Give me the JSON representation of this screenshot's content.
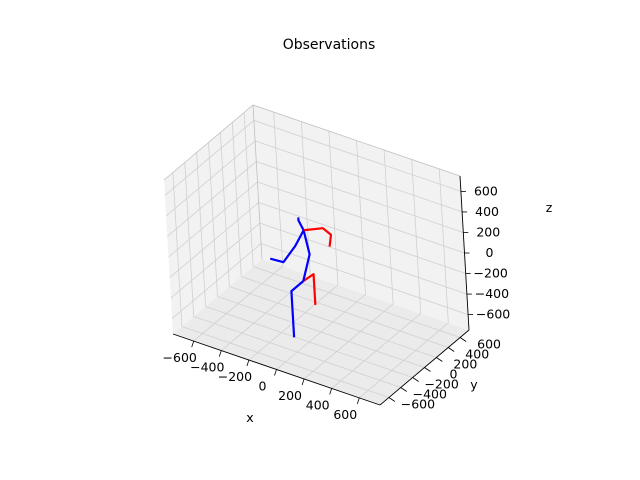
{
  "chart_data": {
    "type": "line3d",
    "title": "Observations",
    "xlabel": "x",
    "ylabel": "y",
    "zlabel": "z",
    "xlim": [
      -750,
      750
    ],
    "ylim": [
      -750,
      750
    ],
    "zlim": [
      -750,
      750
    ],
    "xticks": [
      -600,
      -400,
      -200,
      0,
      200,
      400,
      600
    ],
    "yticks": [
      -600,
      -400,
      -200,
      0,
      200,
      400,
      600
    ],
    "zticks": [
      -600,
      -400,
      -200,
      0,
      200,
      400,
      600
    ],
    "grid": true,
    "colors": {
      "left": "#ff0000",
      "right": "#0000ff",
      "pane": "#f2f2f2",
      "grid": "#d0d0d0"
    },
    "series": [
      {
        "color": "#ff0000",
        "points": [
          [
            -40,
            -150,
            -200
          ],
          [
            -30,
            0,
            -200
          ],
          [
            -30,
            0,
            -500
          ]
        ]
      },
      {
        "color": "#0000ff",
        "points": [
          [
            -40,
            -150,
            -200
          ],
          [
            -40,
            -350,
            -200
          ],
          [
            -40,
            -350,
            -650
          ]
        ]
      },
      {
        "color": "#0000ff",
        "points": [
          [
            -40,
            -150,
            -200
          ],
          [
            0,
            -110,
            60
          ],
          [
            -20,
            -140,
            300
          ],
          [
            -40,
            -170,
            400
          ],
          [
            -40,
            -170,
            430
          ]
        ]
      },
      {
        "color": "#ff0000",
        "points": [
          [
            -20,
            -140,
            300
          ],
          [
            40,
            40,
            260
          ],
          [
            10,
            230,
            90
          ],
          [
            -10,
            240,
            -40
          ]
        ]
      },
      {
        "color": "#0000ff",
        "points": [
          [
            -20,
            -140,
            300
          ],
          [
            -20,
            -290,
            220
          ],
          [
            -100,
            -320,
            40
          ],
          [
            -150,
            -420,
            100
          ]
        ]
      }
    ]
  }
}
